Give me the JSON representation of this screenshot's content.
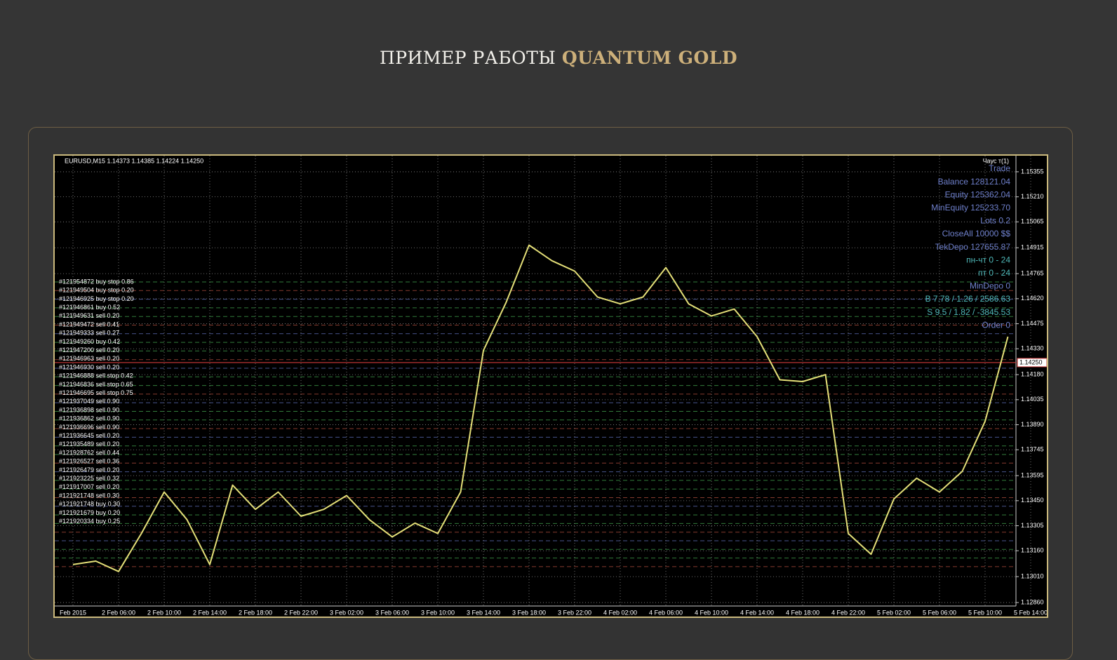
{
  "header": {
    "title": "ПРИМЕР РАБОТЫ",
    "title_accent": "QUANTUM GOLD"
  },
  "chart_data": {
    "type": "line",
    "title": "EURUSD,M15  1.14373 1.14385 1.14224 1.14250",
    "corner_label": "Чаус т(1)",
    "categories": [
      "Feb 2015",
      null,
      "2 Feb 06:00",
      null,
      "2 Feb 10:00",
      null,
      "2 Feb 14:00",
      null,
      "2 Feb 18:00",
      null,
      "2 Feb 22:00",
      null,
      "3 Feb 02:00",
      null,
      "3 Feb 06:00",
      null,
      "3 Feb 10:00",
      null,
      "3 Feb 14:00",
      null,
      "3 Feb 18:00",
      null,
      "3 Feb 22:00",
      null,
      "4 Feb 02:00",
      null,
      "4 Feb 06:00",
      null,
      "4 Feb 10:00",
      null,
      "4 Feb 14:00",
      null,
      "4 Feb 18:00",
      null,
      "4 Feb 22:00",
      null,
      "5 Feb 02:00",
      null,
      "5 Feb 06:00",
      null,
      "5 Feb 10:00",
      null,
      "5 Feb 14:00"
    ],
    "series": [
      {
        "name": "EURUSD,M15",
        "color": "#e4df78",
        "values": [
          1.1308,
          1.131,
          1.1304,
          1.1326,
          1.135,
          1.1334,
          1.1308,
          1.1354,
          1.134,
          1.135,
          1.1336,
          1.134,
          1.1348,
          1.1334,
          1.1324,
          1.1332,
          1.1326,
          1.135,
          1.1432,
          1.146,
          1.1493,
          1.1484,
          1.1478,
          1.1463,
          1.1459,
          1.1463,
          1.148,
          1.1459,
          1.1452,
          1.1456,
          1.144,
          1.1415,
          1.1414,
          1.1418,
          1.1326,
          1.1314,
          1.1346,
          1.1358,
          1.135,
          1.1362,
          1.1391,
          1.144,
          null
        ]
      }
    ],
    "ylim": [
      1.1284,
      1.1544
    ],
    "yticks": [
      1.15355,
      {
        "value": 1.1521,
        "label": "1.15210"
      },
      1.15065,
      1.14915,
      1.14765,
      {
        "value": 1.1462,
        "label": "1.14620"
      },
      1.14475,
      {
        "value": 1.1433,
        "label": "1.14330"
      },
      {
        "value": 1.1418,
        "label": "1.14180"
      },
      1.14035,
      {
        "value": 1.1389,
        "label": "1.13890"
      },
      1.13745,
      1.13595,
      {
        "value": 1.1345,
        "label": "1.13450"
      },
      1.13305,
      {
        "value": 1.1316,
        "label": "1.13160"
      },
      {
        "value": 1.1301,
        "label": "1.13010"
      },
      {
        "value": 1.1286,
        "label": "1.12860"
      }
    ],
    "last_price": {
      "value": 1.1425,
      "label": "1.14250"
    },
    "grid": true,
    "info_panel": [
      "Trade",
      "Balance  128121.04",
      "Equity  125362.04",
      "MinEquity  125233.70",
      "Lots  0.2",
      "CloseAll  10000 $$",
      "TekDepo  127655.87",
      "пн-чт  0 - 24",
      "пт  0 - 24",
      "MinDepo  0",
      "B  7.78 / 1.26 / 2586.63",
      "S  9.5 / 1.82 / -3845.53",
      "Order  0"
    ],
    "order_labels": [
      "#121954872 buy stop 0.86",
      "#121949504 buy stop 0.20",
      "#121946925 buy stop 0.20",
      "#121946861 buy 0.52",
      "#121949631 sell 0.20",
      "#121949472 sell 0.41",
      "#121949333 sell 0.27",
      "#121949260 buy 0.42",
      "#121947200 sell 0.20",
      "#121946963 sell 0.20",
      "#121946930 sell 0.20",
      "#121946888 sell stop 0.42",
      "#121946836 sell stop 0.65",
      "#121946695 sell stop 0.75",
      "#121937049 sell 0.90",
      "#121936898 sell 0.90",
      "#121936862 sell 0.90",
      "#121936696 sell 0.90",
      "#121936645 sell 0.20",
      "#121935489 sell 0.20",
      "#121928762 sell 0.44",
      "#121926527 sell 0.36",
      "#121926479 sell 0.20",
      "#121923225 sell 0.32",
      "#121917007 sell 0.20",
      "#121921748 sell 0.30",
      "#121921748 buy 0.30",
      "#121921679 buy 0.20",
      "#121920334 buy 0.25"
    ]
  }
}
